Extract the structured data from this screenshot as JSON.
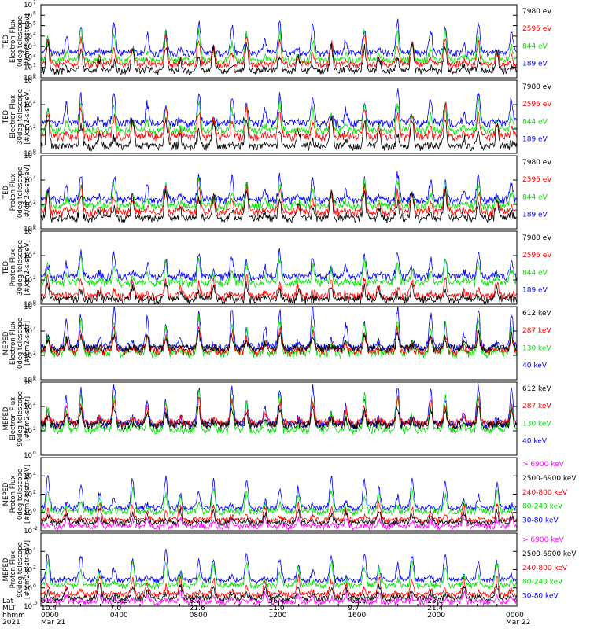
{
  "colors": {
    "black": "#000000",
    "red": "#ff0000",
    "green": "#00e000",
    "blue": "#0000ff",
    "magenta": "#ff00ff"
  },
  "chart_data": [
    {
      "type": "line",
      "ylabel_lines": [
        "TED",
        "Electron Flux",
        "0deg telescope",
        "[#/cm2-s-str-eV]"
      ],
      "yscale": "log",
      "ylim": [
        1,
        10000000
      ],
      "y_ticks": [
        {
          "exp": 0,
          "label": "10"
        },
        {
          "exp": 1,
          "label": "10"
        },
        {
          "exp": 2,
          "label": "10"
        },
        {
          "exp": 3,
          "label": "10"
        },
        {
          "exp": 4,
          "label": "10"
        },
        {
          "exp": 5,
          "label": "10"
        },
        {
          "exp": 6,
          "label": "10"
        },
        {
          "exp": 7,
          "label": "10"
        }
      ],
      "series": [
        {
          "name": "7980 eV",
          "color": "black",
          "base": 0.6,
          "peak": 3.2
        },
        {
          "name": "2595 eV",
          "color": "red",
          "base": 1.2,
          "peak": 4.0
        },
        {
          "name": "844 eV",
          "color": "green",
          "base": 1.6,
          "peak": 4.6
        },
        {
          "name": "189 eV",
          "color": "blue",
          "base": 2.3,
          "peak": 5.4
        }
      ]
    },
    {
      "type": "line",
      "ylabel_lines": [
        "TED",
        "Electron Flux",
        "30deg telescope",
        "[#/cm2-s-str-eV]"
      ],
      "yscale": "log",
      "ylim": [
        1,
        1000000
      ],
      "y_ticks": [
        {
          "exp": 0,
          "label": "10"
        },
        {
          "exp": 2,
          "label": "10"
        },
        {
          "exp": 4,
          "label": "10"
        },
        {
          "exp": 6,
          "label": "10"
        }
      ],
      "series": [
        {
          "name": "7980 eV",
          "color": "black",
          "base": 0.5,
          "peak": 3.0
        },
        {
          "name": "2595 eV",
          "color": "red",
          "base": 1.3,
          "peak": 3.8
        },
        {
          "name": "844 eV",
          "color": "green",
          "base": 1.8,
          "peak": 4.3
        },
        {
          "name": "189 eV",
          "color": "blue",
          "base": 2.4,
          "peak": 5.0
        }
      ]
    },
    {
      "type": "line",
      "ylabel_lines": [
        "TED",
        "Proton Flux",
        "0deg telescope",
        "[#/cm2-s-str-eV]"
      ],
      "yscale": "log",
      "ylim": [
        1,
        1000000
      ],
      "y_ticks": [
        {
          "exp": 0,
          "label": "10"
        },
        {
          "exp": 2,
          "label": "10"
        },
        {
          "exp": 4,
          "label": "10"
        },
        {
          "exp": 6,
          "label": "10"
        }
      ],
      "series": [
        {
          "name": "7980 eV",
          "color": "black",
          "base": 0.8,
          "peak": 3.2
        },
        {
          "name": "2595 eV",
          "color": "red",
          "base": 1.3,
          "peak": 3.6
        },
        {
          "name": "844 eV",
          "color": "green",
          "base": 1.8,
          "peak": 3.9
        },
        {
          "name": "189 eV",
          "color": "blue",
          "base": 2.3,
          "peak": 4.4
        }
      ]
    },
    {
      "type": "line",
      "ylabel_lines": [
        "TED",
        "Proton Flux",
        "30deg telescope",
        "[#/cm2-s-str-eV]"
      ],
      "yscale": "log",
      "ylim": [
        1,
        1000000
      ],
      "y_ticks": [
        {
          "exp": 0,
          "label": "10"
        },
        {
          "exp": 2,
          "label": "10"
        },
        {
          "exp": 4,
          "label": "10"
        },
        {
          "exp": 6,
          "label": "10"
        }
      ],
      "series": [
        {
          "name": "7980 eV",
          "color": "black",
          "base": 0.3,
          "peak": 1.6
        },
        {
          "name": "2595 eV",
          "color": "red",
          "base": 0.6,
          "peak": 2.2
        },
        {
          "name": "844 eV",
          "color": "green",
          "base": 1.7,
          "peak": 3.7
        },
        {
          "name": "189 eV",
          "color": "blue",
          "base": 2.2,
          "peak": 4.3
        }
      ]
    },
    {
      "type": "line",
      "ylabel_lines": [
        "MEPED",
        "Electron Flux",
        "0deg telescope",
        "[#/cm2-s-str]"
      ],
      "yscale": "log",
      "ylim": [
        1,
        1000000
      ],
      "y_ticks": [
        {
          "exp": 0,
          "label": "10"
        },
        {
          "exp": 2,
          "label": "10"
        },
        {
          "exp": 4,
          "label": "10"
        },
        {
          "exp": 6,
          "label": "10"
        }
      ],
      "series": [
        {
          "name": "612 keV",
          "color": "black",
          "base": 2.5,
          "peak": 3.8
        },
        {
          "name": "287 keV",
          "color": "red",
          "base": 2.3,
          "peak": 4.2
        },
        {
          "name": "130 keV",
          "color": "green",
          "base": 2.1,
          "peak": 5.0
        },
        {
          "name": "40 keV",
          "color": "blue",
          "base": 2.6,
          "peak": 5.9
        }
      ]
    },
    {
      "type": "line",
      "ylabel_lines": [
        "MEPED",
        "Electron Flux",
        "90deg telescope",
        "[#/cm2-s-str]"
      ],
      "yscale": "log",
      "ylim": [
        1,
        1000000
      ],
      "y_ticks": [
        {
          "exp": 0,
          "label": "10"
        },
        {
          "exp": 2,
          "label": "10"
        },
        {
          "exp": 4,
          "label": "10"
        },
        {
          "exp": 6,
          "label": "10"
        }
      ],
      "series": [
        {
          "name": "612 keV",
          "color": "black",
          "base": 2.4,
          "peak": 4.0
        },
        {
          "name": "287 keV",
          "color": "red",
          "base": 2.6,
          "peak": 4.6
        },
        {
          "name": "130 keV",
          "color": "green",
          "base": 2.0,
          "peak": 5.2
        },
        {
          "name": "40 keV",
          "color": "blue",
          "base": 2.5,
          "peak": 5.8
        }
      ]
    },
    {
      "type": "line",
      "ylabel_lines": [
        "MEPED",
        "Proton Flux",
        "0deg telescope",
        "[#/cm2-s-str-keV]"
      ],
      "yscale": "log",
      "ylim": [
        0.01,
        1000000
      ],
      "y_ticks": [
        {
          "exp": -2,
          "label": "10"
        },
        {
          "exp": 0,
          "label": "10"
        },
        {
          "exp": 2,
          "label": "10"
        },
        {
          "exp": 4,
          "label": "10"
        }
      ],
      "series": [
        {
          "name": "> 6900 keV",
          "color": "magenta",
          "base": -1.6,
          "peak": -0.6
        },
        {
          "name": "2500-6900 keV",
          "color": "black",
          "base": -1.2,
          "peak": 0.2
        },
        {
          "name": "240-800 keV",
          "color": "red",
          "base": -0.9,
          "peak": 0.9
        },
        {
          "name": "80-240 keV",
          "color": "green",
          "base": 0.0,
          "peak": 2.5
        },
        {
          "name": "30-80 keV",
          "color": "blue",
          "base": 0.4,
          "peak": 3.9
        }
      ]
    },
    {
      "type": "line",
      "ylabel_lines": [
        "MEPED",
        "Proton Flux",
        "90deg telescope",
        "[#/cm2-s-str-keV]"
      ],
      "yscale": "log",
      "ylim": [
        0.01,
        1000000
      ],
      "y_ticks": [
        {
          "exp": -2,
          "label": "10"
        },
        {
          "exp": 0,
          "label": "10"
        },
        {
          "exp": 2,
          "label": "10"
        },
        {
          "exp": 4,
          "label": "10"
        }
      ],
      "series": [
        {
          "name": "> 6900 keV",
          "color": "magenta",
          "base": -1.6,
          "peak": -0.6
        },
        {
          "name": "2500-6900 keV",
          "color": "black",
          "base": -1.2,
          "peak": 0.3
        },
        {
          "name": "240-800 keV",
          "color": "red",
          "base": -0.8,
          "peak": 1.2
        },
        {
          "name": "80-240 keV",
          "color": "green",
          "base": 0.2,
          "peak": 3.0
        },
        {
          "name": "30-80 keV",
          "color": "blue",
          "base": 0.8,
          "peak": 4.0
        }
      ]
    }
  ],
  "time_axis": {
    "labels": [
      "Lat",
      "MLT",
      "hhmm",
      "2021"
    ],
    "ticks": [
      {
        "hour": 0,
        "lat": "61.5",
        "mlt": "10.4",
        "hhmm": "0000",
        "date": "Mar 21"
      },
      {
        "hour": 4,
        "lat": "-63.5",
        "mlt": "7.0",
        "hhmm": "0400",
        "date": ""
      },
      {
        "hour": 8,
        "lat": "3.7",
        "mlt": "21.6",
        "hhmm": "0800",
        "date": ""
      },
      {
        "hour": 12,
        "lat": "56.4",
        "mlt": "11.0",
        "hhmm": "1200",
        "date": ""
      },
      {
        "hour": 16,
        "lat": "-66.5",
        "mlt": "9.7",
        "hhmm": "1600",
        "date": ""
      },
      {
        "hour": 20,
        "lat": "23.1",
        "mlt": "21.4",
        "hhmm": "2000",
        "date": ""
      },
      {
        "hour": 24,
        "lat": "",
        "mlt": "",
        "hhmm": "0000",
        "date": "Mar 22"
      }
    ]
  }
}
